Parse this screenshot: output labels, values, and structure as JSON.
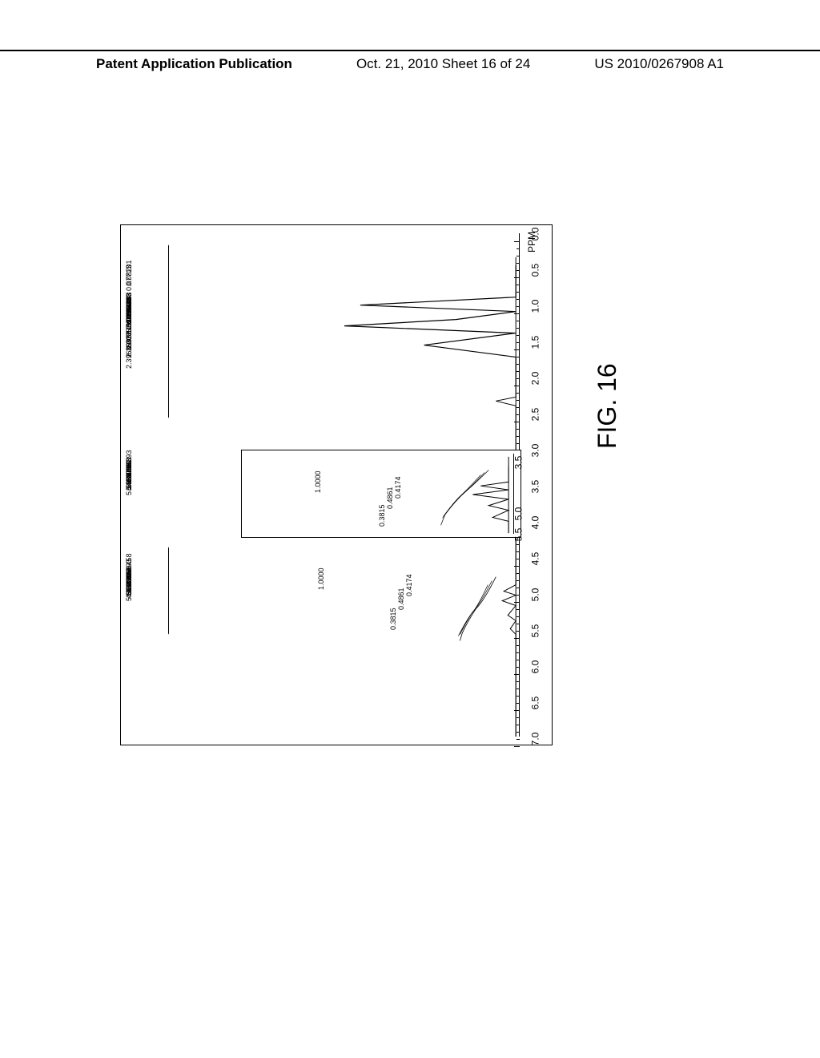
{
  "header": {
    "left": "Patent Application Publication",
    "center": "Oct. 21, 2010  Sheet 16 of 24",
    "right": "US 2010/0267908 A1"
  },
  "figure": {
    "label": "FIG. 16",
    "spectrum": {
      "type": "nmr-1h",
      "axis_label": "PPM",
      "xlim": [
        0.0,
        7.0
      ],
      "xtick_major": [
        "7.0",
        "6.5",
        "6.0",
        "5.5",
        "5.0",
        "4.5",
        "4.0",
        "3.5",
        "3.0",
        "2.5",
        "2.0",
        "1.5",
        "1.0",
        "0.5",
        "0.0"
      ],
      "xtick_positions": [
        7.0,
        6.5,
        6.0,
        5.5,
        5.0,
        4.5,
        4.0,
        3.5,
        3.0,
        2.5,
        2.0,
        1.5,
        1.0,
        0.5,
        0.0
      ],
      "peak_labels_group1": [
        "5.38306",
        "5.34997",
        "5.13908",
        "5.00351",
        "4.98275",
        "4.67893",
        "4.67863",
        "4.62000",
        "4.26458"
      ],
      "peak_labels_group2": [
        "5.38306",
        "5.34997",
        "5.13908",
        "5.00351",
        "4.98275",
        "4.67893",
        "4.67863",
        "4.62000"
      ],
      "peak_labels_group3": [
        "2.39689",
        "2.16322",
        "1.95841",
        "1.90857",
        "1.59945",
        "1.47539",
        "1.29849",
        "1.26636",
        "1.13178",
        "1.07193",
        "0.93208",
        "0.84353",
        "0.77147",
        "0.75621",
        "0.72323",
        "0.08201",
        "0.07713"
      ],
      "integral_labels_main": [
        "0.3815",
        "0.4861",
        "1.0000",
        "0.4174"
      ],
      "integral_positions_main": [
        5.36,
        5.05,
        4.68,
        4.62
      ],
      "inset": {
        "xlim": [
          3.5,
          5.5
        ],
        "xticks": [
          "5.5",
          "5.0",
          "3.5"
        ],
        "integral_labels": [
          "0.3815",
          "0.4861",
          "1.0000",
          "0.4174"
        ]
      },
      "background_color": "#ffffff",
      "line_color": "#000000",
      "axis_color": "#000000",
      "label_fontsize": 12,
      "peak_label_fontsize": 9
    }
  }
}
